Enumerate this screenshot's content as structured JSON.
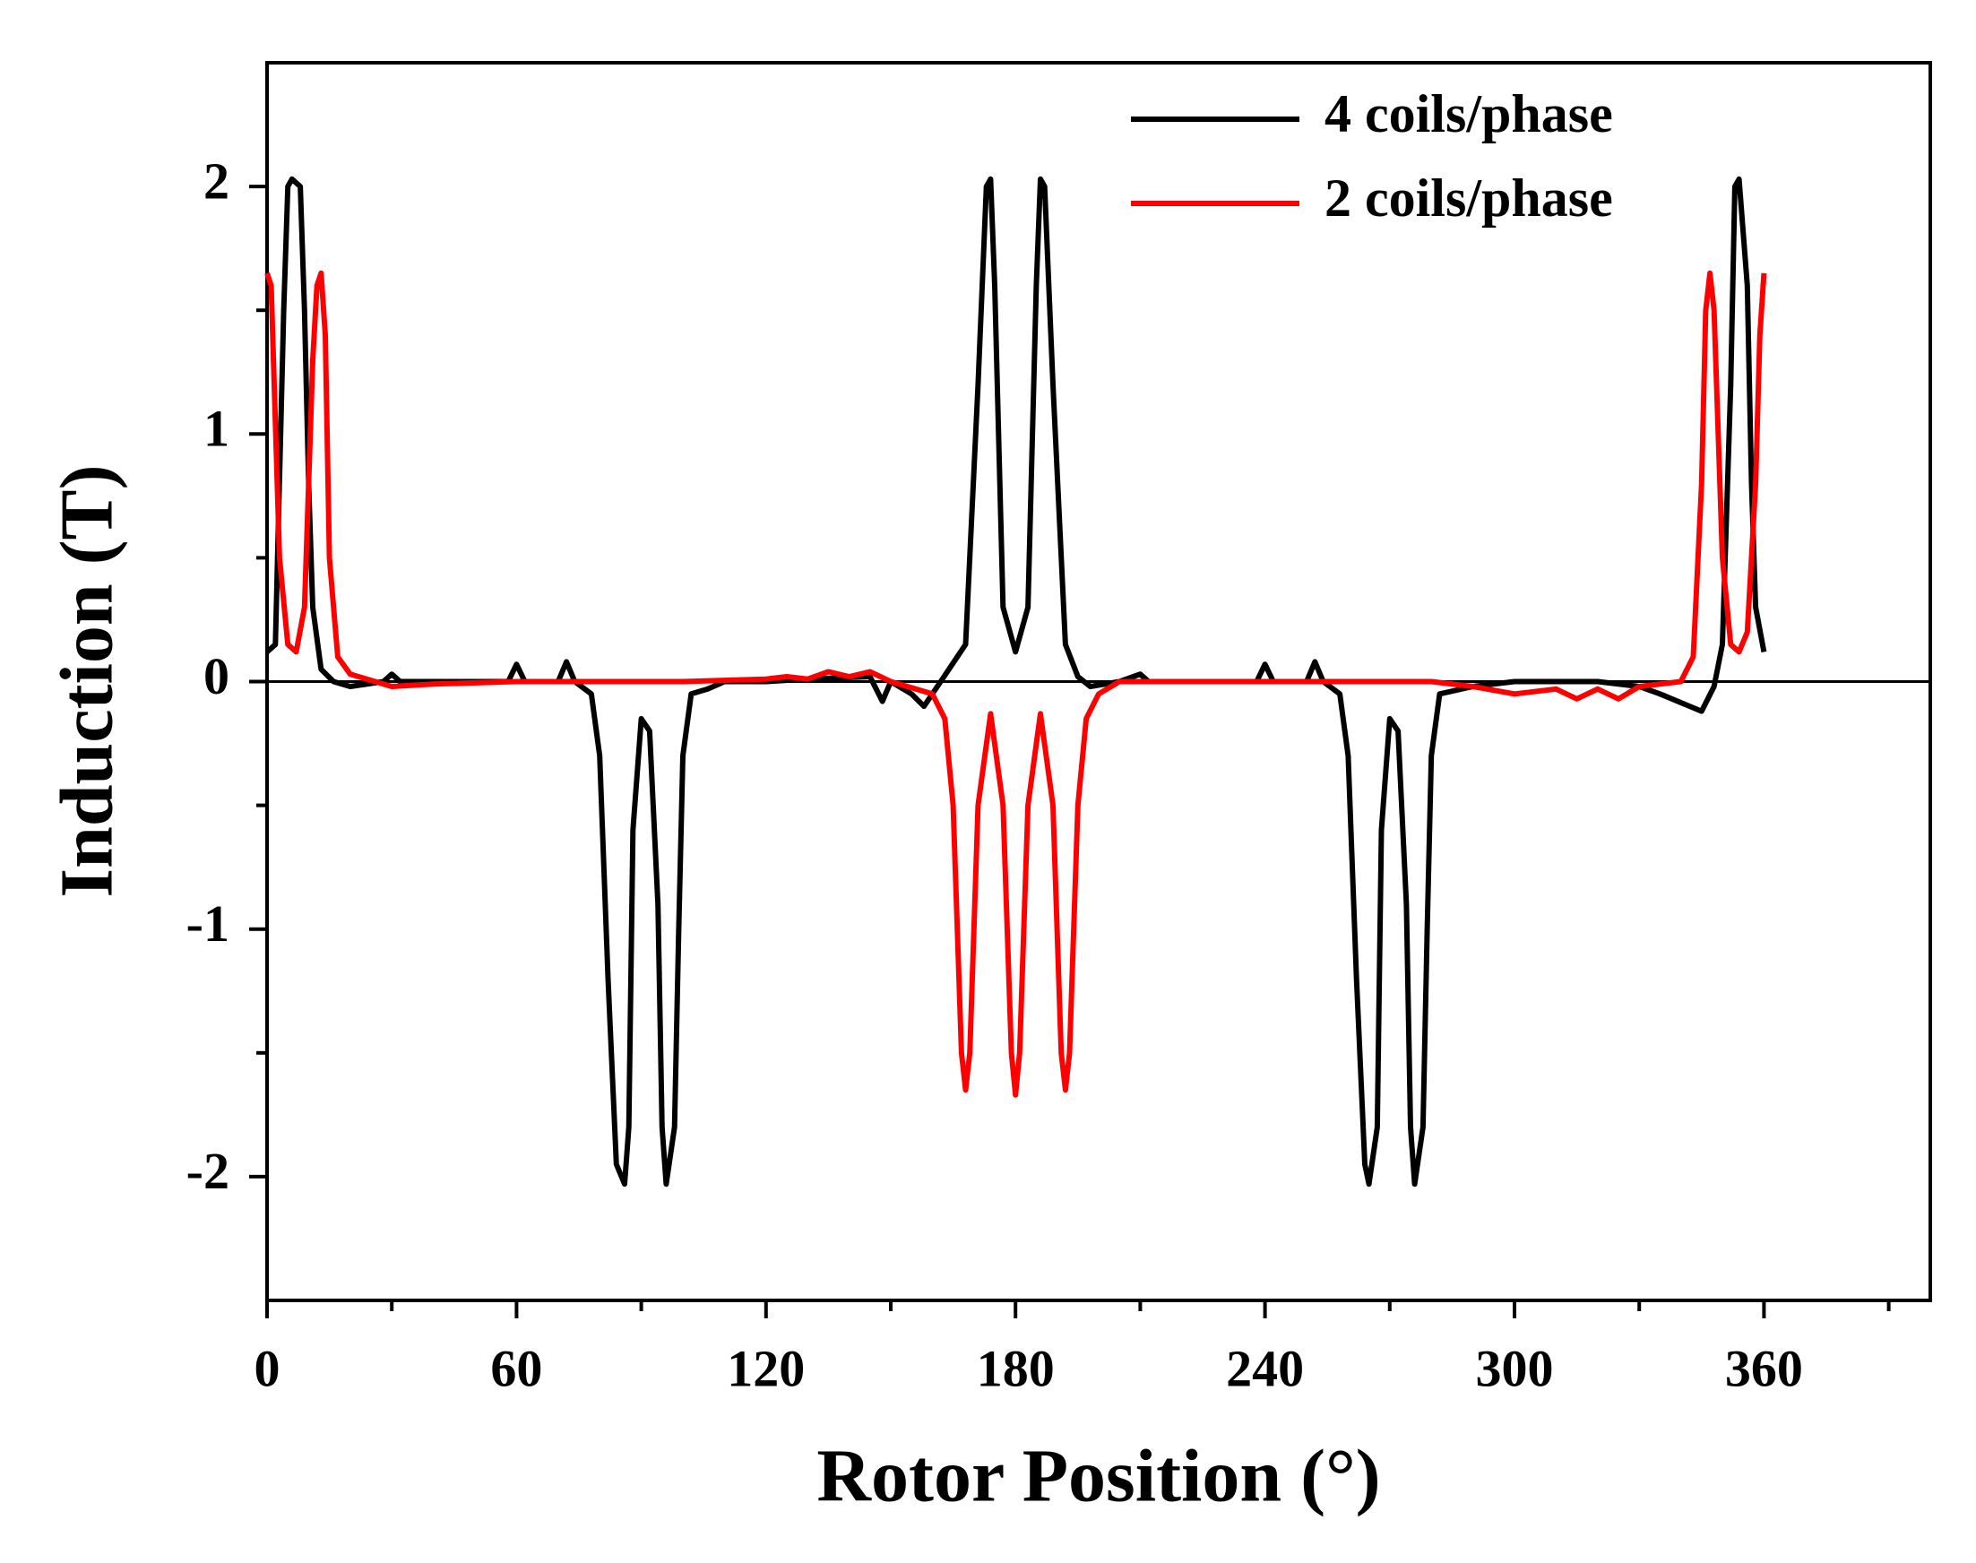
{
  "chart_data": {
    "type": "line",
    "xlabel": "Rotor Position (°)",
    "ylabel": "Induction (T)",
    "xlim": [
      0,
      400
    ],
    "ylim": [
      -2.5,
      2.5
    ],
    "xticks": [
      0,
      60,
      120,
      180,
      240,
      300,
      360
    ],
    "xminorticks": [
      30,
      90,
      150,
      210,
      270,
      330,
      390
    ],
    "yticks": [
      -2,
      -1,
      0,
      1,
      2
    ],
    "yminorticks": [
      -1.5,
      -0.5,
      0.5,
      1.5
    ],
    "zero_line": true,
    "legend": "upper right",
    "series": [
      {
        "name": "4 coils/phase",
        "color": "#000000",
        "x": [
          0,
          2,
          4,
          5,
          6,
          8,
          9,
          10,
          11,
          13,
          16,
          20,
          28,
          30,
          32,
          58,
          60,
          62,
          70,
          72,
          74,
          78,
          80,
          82,
          84,
          86,
          87,
          88,
          90,
          92,
          94,
          95,
          96,
          98,
          99,
          100,
          102,
          106,
          110,
          120,
          130,
          145,
          148,
          150,
          155,
          158,
          162,
          168,
          171,
          173,
          174,
          175,
          177,
          180,
          183,
          185,
          186,
          187,
          189,
          192,
          195,
          198,
          205,
          210,
          212,
          238,
          240,
          242,
          250,
          252,
          254,
          258,
          260,
          262,
          264,
          265,
          267,
          268,
          270,
          272,
          274,
          275,
          276,
          278,
          279,
          280,
          282,
          290,
          300,
          320,
          330,
          335,
          345,
          348,
          350,
          352,
          353,
          354,
          356,
          357,
          358,
          360
        ],
        "values": [
          0.12,
          0.15,
          1.5,
          2.0,
          2.03,
          2.0,
          1.5,
          0.8,
          0.3,
          0.05,
          0,
          -0.02,
          0,
          0.03,
          0,
          0,
          0.07,
          0,
          0,
          0.08,
          0,
          -0.05,
          -0.3,
          -1.2,
          -1.95,
          -2.03,
          -1.8,
          -0.6,
          -0.15,
          -0.2,
          -0.9,
          -1.8,
          -2.03,
          -1.8,
          -1.0,
          -0.3,
          -0.05,
          -0.03,
          0,
          0,
          0.01,
          0.02,
          -0.08,
          0,
          -0.05,
          -0.1,
          0,
          0.15,
          1.2,
          2.0,
          2.03,
          1.6,
          0.3,
          0.12,
          0.3,
          1.6,
          2.03,
          2.0,
          1.2,
          0.15,
          0.02,
          -0.02,
          0,
          0.03,
          0,
          0,
          0.07,
          0,
          0,
          0.08,
          0,
          -0.05,
          -0.3,
          -1.2,
          -1.95,
          -2.03,
          -1.8,
          -0.6,
          -0.15,
          -0.2,
          -0.9,
          -1.8,
          -2.03,
          -1.8,
          -1.0,
          -0.3,
          -0.05,
          -0.02,
          0,
          0,
          -0.02,
          -0.05,
          -0.12,
          -0.02,
          0.15,
          1.2,
          2.0,
          2.03,
          1.6,
          0.8,
          0.3,
          0.12
        ]
      },
      {
        "name": "2 coils/phase",
        "color": "#ff0000",
        "x": [
          0,
          1,
          3,
          5,
          7,
          9,
          11,
          12,
          13,
          14,
          15,
          17,
          20,
          30,
          40,
          60,
          100,
          120,
          125,
          130,
          135,
          140,
          145,
          150,
          160,
          163,
          165,
          167,
          168,
          169,
          171,
          174,
          177,
          179,
          180,
          181,
          183,
          186,
          189,
          191,
          192,
          193,
          195,
          197,
          200,
          205,
          240,
          280,
          290,
          300,
          310,
          315,
          320,
          325,
          330,
          340,
          343,
          345,
          346,
          347,
          348,
          350,
          352,
          354,
          356,
          358,
          359,
          360
        ],
        "values": [
          1.65,
          1.6,
          0.5,
          0.15,
          0.12,
          0.3,
          1.3,
          1.6,
          1.65,
          1.4,
          0.5,
          0.1,
          0.03,
          -0.02,
          -0.01,
          0,
          0,
          0.01,
          0.02,
          0.01,
          0.04,
          0.02,
          0.04,
          0,
          -0.05,
          -0.15,
          -0.5,
          -1.5,
          -1.65,
          -1.5,
          -0.5,
          -0.13,
          -0.5,
          -1.5,
          -1.67,
          -1.5,
          -0.5,
          -0.13,
          -0.5,
          -1.5,
          -1.65,
          -1.5,
          -0.5,
          -0.15,
          -0.05,
          0,
          0,
          0,
          -0.02,
          -0.05,
          -0.03,
          -0.07,
          -0.03,
          -0.07,
          -0.02,
          0,
          0.1,
          0.8,
          1.5,
          1.65,
          1.5,
          0.5,
          0.15,
          0.12,
          0.2,
          0.8,
          1.4,
          1.65
        ]
      }
    ]
  }
}
